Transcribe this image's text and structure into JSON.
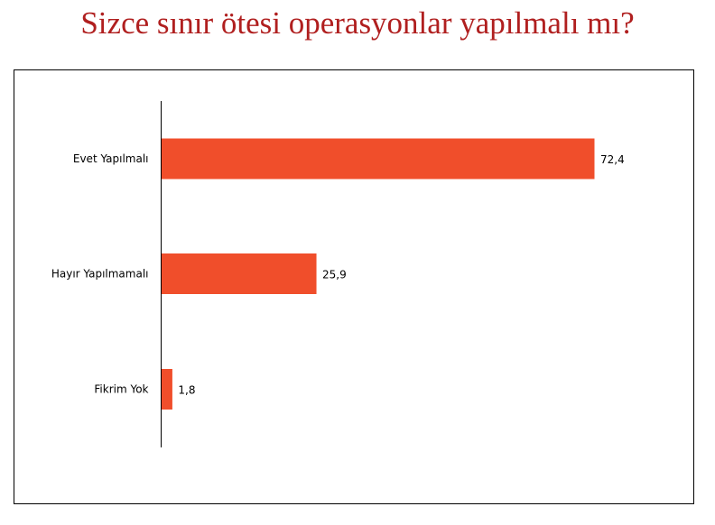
{
  "chart_data": {
    "type": "bar",
    "orientation": "horizontal",
    "title": "Sizce sınır ötesi operasyonlar yapılmalı mı?",
    "categories": [
      "Evet Yapılmalı",
      "Hayır Yapılmamalı",
      "Fikrim Yok"
    ],
    "values": [
      72.4,
      25.9,
      1.8
    ],
    "value_labels": [
      "72,4",
      "25,9",
      "1,8"
    ],
    "xlim": [
      0,
      80
    ],
    "grid": false,
    "legend": "none",
    "bar_color": "#f04e2b",
    "title_color": "#b01f1f"
  }
}
